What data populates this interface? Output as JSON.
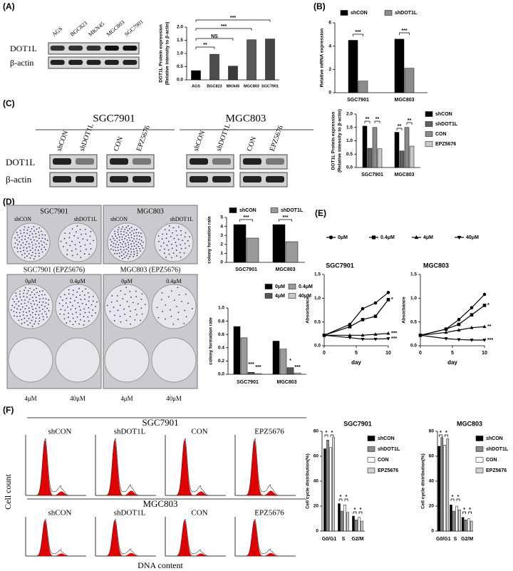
{
  "panels": [
    "(A)",
    "(B)",
    "(C)",
    "(D)",
    "(E)",
    "(F)"
  ],
  "blot_a": {
    "lanes": [
      "AGS",
      "BGC823",
      "MKN45",
      "MGC803",
      "SGC7901"
    ],
    "rows": [
      "DOT1L",
      "β-actin"
    ]
  },
  "blot_c": {
    "groups": [
      "SGC7901",
      "MGC803"
    ],
    "lanes": [
      "shCON",
      "shDOT1L",
      "CON",
      "EPZ5676",
      "shCON",
      "shDOT1L",
      "CON",
      "EPZ5676"
    ],
    "rows": [
      "DOT1L",
      "β-actin"
    ]
  },
  "colony": {
    "top_titles": [
      "SGC7901",
      "MGC803"
    ],
    "top_lanes": [
      "shCON",
      "shDOT1L",
      "shCON",
      "shDOT1L"
    ],
    "bottom_titles": [
      "SGC7901 (EPZ5676)",
      "MGC803 (EPZ5676)"
    ],
    "bottom_doses": [
      "0μM",
      "0.4μM",
      "0μM",
      "0.4μM"
    ],
    "bottom_doses_lower": [
      "4μM",
      "40μM",
      "4μM",
      "40μM"
    ]
  },
  "flow": {
    "groups": [
      "SGC7901",
      "MGC803"
    ],
    "labels": [
      "shCON",
      "shDOT1L",
      "CON",
      "EPZ5676"
    ],
    "ylabel": "Cell count",
    "xlabel": "DNA content"
  },
  "chart_data": [
    {
      "type": "bar",
      "categories": [
        "AGS",
        "BGC823",
        "MKN45",
        "MGC803",
        "SGC7901"
      ],
      "values": [
        0.35,
        0.97,
        0.52,
        1.52,
        1.55
      ],
      "colors": [
        "#000000",
        "#4d4d4d",
        "#3a3a3a",
        "#5a5a5a",
        "#444444"
      ],
      "ylabel": [
        "DOT1L Protein expression",
        "(Relative intensity to β-actin)"
      ],
      "ylim": [
        0,
        2
      ],
      "yticks": [
        {
          "value": 0,
          "label": "0.0"
        },
        {
          "value": 0.5,
          "label": "0.5"
        },
        {
          "value": 1,
          "label": "1.0"
        },
        {
          "value": 1.5,
          "label": "1.5"
        },
        {
          "value": 2,
          "label": "2.0"
        }
      ],
      "annotations": [
        "**",
        "NS",
        "***",
        "***"
      ]
    },
    {
      "type": "bar",
      "categories": [
        "SGC7901",
        "MGC803"
      ],
      "series": [
        {
          "name": "shCON",
          "color": "#000000",
          "values": [
            4.5,
            4.6
          ]
        },
        {
          "name": "shDOT1L",
          "color": "#8c8c8c",
          "values": [
            1.0,
            2.1
          ]
        }
      ],
      "ylabel": "Relative mRNA expression",
      "ylim": [
        0,
        6
      ],
      "yticks": [
        0,
        2,
        4,
        6
      ],
      "legend": "top",
      "annotations": [
        "***",
        "***"
      ]
    },
    {
      "type": "bar",
      "categories": [
        "SGC7901",
        "MGC803"
      ],
      "series": [
        {
          "name": "shCON",
          "color": "#000000",
          "values": [
            1.55,
            1.32
          ]
        },
        {
          "name": "shDOT1L",
          "color": "#5f5f5f",
          "values": [
            0.72,
            0.62
          ]
        },
        {
          "name": "CON",
          "color": "#8a8a8a",
          "values": [
            1.5,
            1.5
          ]
        },
        {
          "name": "EPZ5676",
          "color": "#c8c8c8",
          "values": [
            0.7,
            0.8
          ]
        }
      ],
      "ylabel": [
        "DOT1L Protein expression",
        "(Relative intensity to β-actin)"
      ],
      "ylim": [
        0,
        2
      ],
      "yticks": [
        {
          "value": 0,
          "label": "0.0"
        },
        {
          "value": 0.5,
          "label": "0.5"
        },
        {
          "value": 1,
          "label": "1.0"
        },
        {
          "value": 1.5,
          "label": "1.5"
        },
        {
          "value": 2,
          "label": "2.0"
        }
      ],
      "legend": "right",
      "annotations": [
        "**",
        "**",
        "**",
        "**"
      ]
    },
    {
      "type": "bar",
      "categories": [
        "SGC7901",
        "MGC803"
      ],
      "series": [
        {
          "name": "shCON",
          "color": "#000000",
          "values": [
            4.2,
            4.2
          ]
        },
        {
          "name": "shDOT1L",
          "color": "#9a9a9a",
          "values": [
            2.7,
            2.3
          ]
        }
      ],
      "ylabel": "colony formation rate",
      "ylim": [
        0,
        5
      ],
      "yticks": [
        0,
        1,
        2,
        3,
        4,
        5
      ],
      "legend": "top",
      "annotations": [
        "***",
        "***"
      ]
    },
    {
      "type": "bar",
      "categories": [
        "SGC7901",
        "MGC803"
      ],
      "series": [
        {
          "name": "0μM",
          "color": "#000000",
          "values": [
            0.72,
            0.5
          ]
        },
        {
          "name": "0.4μM",
          "color": "#9a9a9a",
          "values": [
            0.55,
            0.38
          ]
        },
        {
          "name": "4μM",
          "color": "#555555",
          "values": [
            0.03,
            0.1
          ]
        },
        {
          "name": "40μM",
          "color": "#c8c8c8",
          "values": [
            0.01,
            0.02
          ]
        }
      ],
      "ylabel": "colony formation rate",
      "ylim": [
        0,
        1
      ],
      "yticks": [
        {
          "value": 0,
          "label": "0.0"
        },
        {
          "value": 0.2,
          "label": "0.2"
        },
        {
          "value": 0.4,
          "label": "0.4"
        },
        {
          "value": 0.6,
          "label": "0.6"
        },
        {
          "value": 0.8,
          "label": "0.8"
        },
        {
          "value": 1,
          "label": "1.0"
        }
      ],
      "legend": "top",
      "annotations": [
        "***",
        "***",
        "*",
        "***"
      ]
    },
    {
      "type": "line",
      "title": "SGC7901",
      "x": [
        0,
        4,
        6,
        8,
        10
      ],
      "series": [
        {
          "name": "0μM",
          "marker": "circle",
          "color": "#000000",
          "values": [
            0.22,
            0.45,
            0.78,
            0.9,
            1.12
          ]
        },
        {
          "name": "0.4μM",
          "marker": "square",
          "color": "#000000",
          "values": [
            0.22,
            0.4,
            0.55,
            0.62,
            0.97
          ]
        },
        {
          "name": "4μM",
          "marker": "triangle-up",
          "color": "#000000",
          "values": [
            0.22,
            0.22,
            0.22,
            0.24,
            0.26
          ]
        },
        {
          "name": "40μM",
          "marker": "triangle-down",
          "color": "#000000",
          "values": [
            0.22,
            0.17,
            0.14,
            0.14,
            0.15
          ]
        }
      ],
      "xlabel": "day",
      "ylabel": "Absorbance",
      "xlim": [
        0,
        10
      ],
      "xticks": [
        0,
        5,
        10
      ],
      "ylim": [
        0,
        1.5
      ],
      "yticks": [
        {
          "value": 0,
          "label": "0.0"
        },
        {
          "value": 0.5,
          "label": "0.5"
        },
        {
          "value": 1,
          "label": "1.0"
        },
        {
          "value": 1.5,
          "label": "1.5"
        }
      ],
      "legend": "top",
      "annotations": [
        "*",
        "***",
        "***"
      ]
    },
    {
      "type": "line",
      "title": "MGC803",
      "x": [
        0,
        4,
        6,
        8,
        10
      ],
      "series": [
        {
          "name": "0μM",
          "marker": "circle",
          "color": "#000000",
          "values": [
            0.22,
            0.35,
            0.55,
            0.8,
            1.08
          ]
        },
        {
          "name": "0.4μM",
          "marker": "square",
          "color": "#000000",
          "values": [
            0.22,
            0.35,
            0.45,
            0.65,
            0.85
          ]
        },
        {
          "name": "4μM",
          "marker": "triangle-up",
          "color": "#000000",
          "values": [
            0.22,
            0.28,
            0.33,
            0.38,
            0.4
          ]
        },
        {
          "name": "40μM",
          "marker": "triangle-down",
          "color": "#000000",
          "values": [
            0.22,
            0.15,
            0.13,
            0.12,
            0.12
          ]
        }
      ],
      "xlabel": "day",
      "ylabel": "Absorbance",
      "xlim": [
        0,
        10
      ],
      "xticks": [
        0,
        5,
        10
      ],
      "ylim": [
        0,
        1.5
      ],
      "yticks": [
        {
          "value": 0,
          "label": "0.0"
        },
        {
          "value": 0.5,
          "label": "0.5"
        },
        {
          "value": 1,
          "label": "1.0"
        },
        {
          "value": 1.5,
          "label": "1.5"
        }
      ],
      "annotations": [
        "*",
        "**",
        "***"
      ]
    },
    {
      "type": "bar",
      "title": "SGC7901",
      "categories": [
        "G0/G1",
        "S",
        "G2/M"
      ],
      "series": [
        {
          "name": "shCON",
          "color": "#000000",
          "values": [
            66,
            22,
            12
          ]
        },
        {
          "name": "shDOT1L",
          "color": "#8c8c8c",
          "values": [
            73,
            16,
            9
          ]
        },
        {
          "name": "CON",
          "color": "#ffffff",
          "values": [
            67,
            21,
            11
          ]
        },
        {
          "name": "EPZ5676",
          "color": "#d0d0d0",
          "values": [
            75,
            15,
            8
          ]
        }
      ],
      "ylabel": "Cell cycle distribution(%)",
      "ylim": [
        0,
        80
      ],
      "yticks": [
        0,
        20,
        40,
        60,
        80
      ],
      "legend": "right",
      "annotations": [
        "*",
        "*",
        "*",
        "*",
        "*",
        "*"
      ]
    },
    {
      "type": "bar",
      "title": "MGC803",
      "categories": [
        "G0/G1",
        "S",
        "G2/M"
      ],
      "series": [
        {
          "name": "shCON",
          "color": "#000000",
          "values": [
            68,
            21,
            11
          ]
        },
        {
          "name": "shDOT1L",
          "color": "#8c8c8c",
          "values": [
            75,
            16,
            9
          ]
        },
        {
          "name": "CON",
          "color": "#ffffff",
          "values": [
            69,
            20,
            10
          ]
        },
        {
          "name": "EPZ5676",
          "color": "#d0d0d0",
          "values": [
            74,
            17,
            8
          ]
        }
      ],
      "ylabel": "Cell cycle distribution(%)",
      "ylim": [
        0,
        80
      ],
      "yticks": [
        0,
        20,
        40,
        60,
        80
      ],
      "legend": "right",
      "annotations": [
        "*",
        "*",
        "*",
        "*",
        "*",
        "*"
      ]
    }
  ]
}
